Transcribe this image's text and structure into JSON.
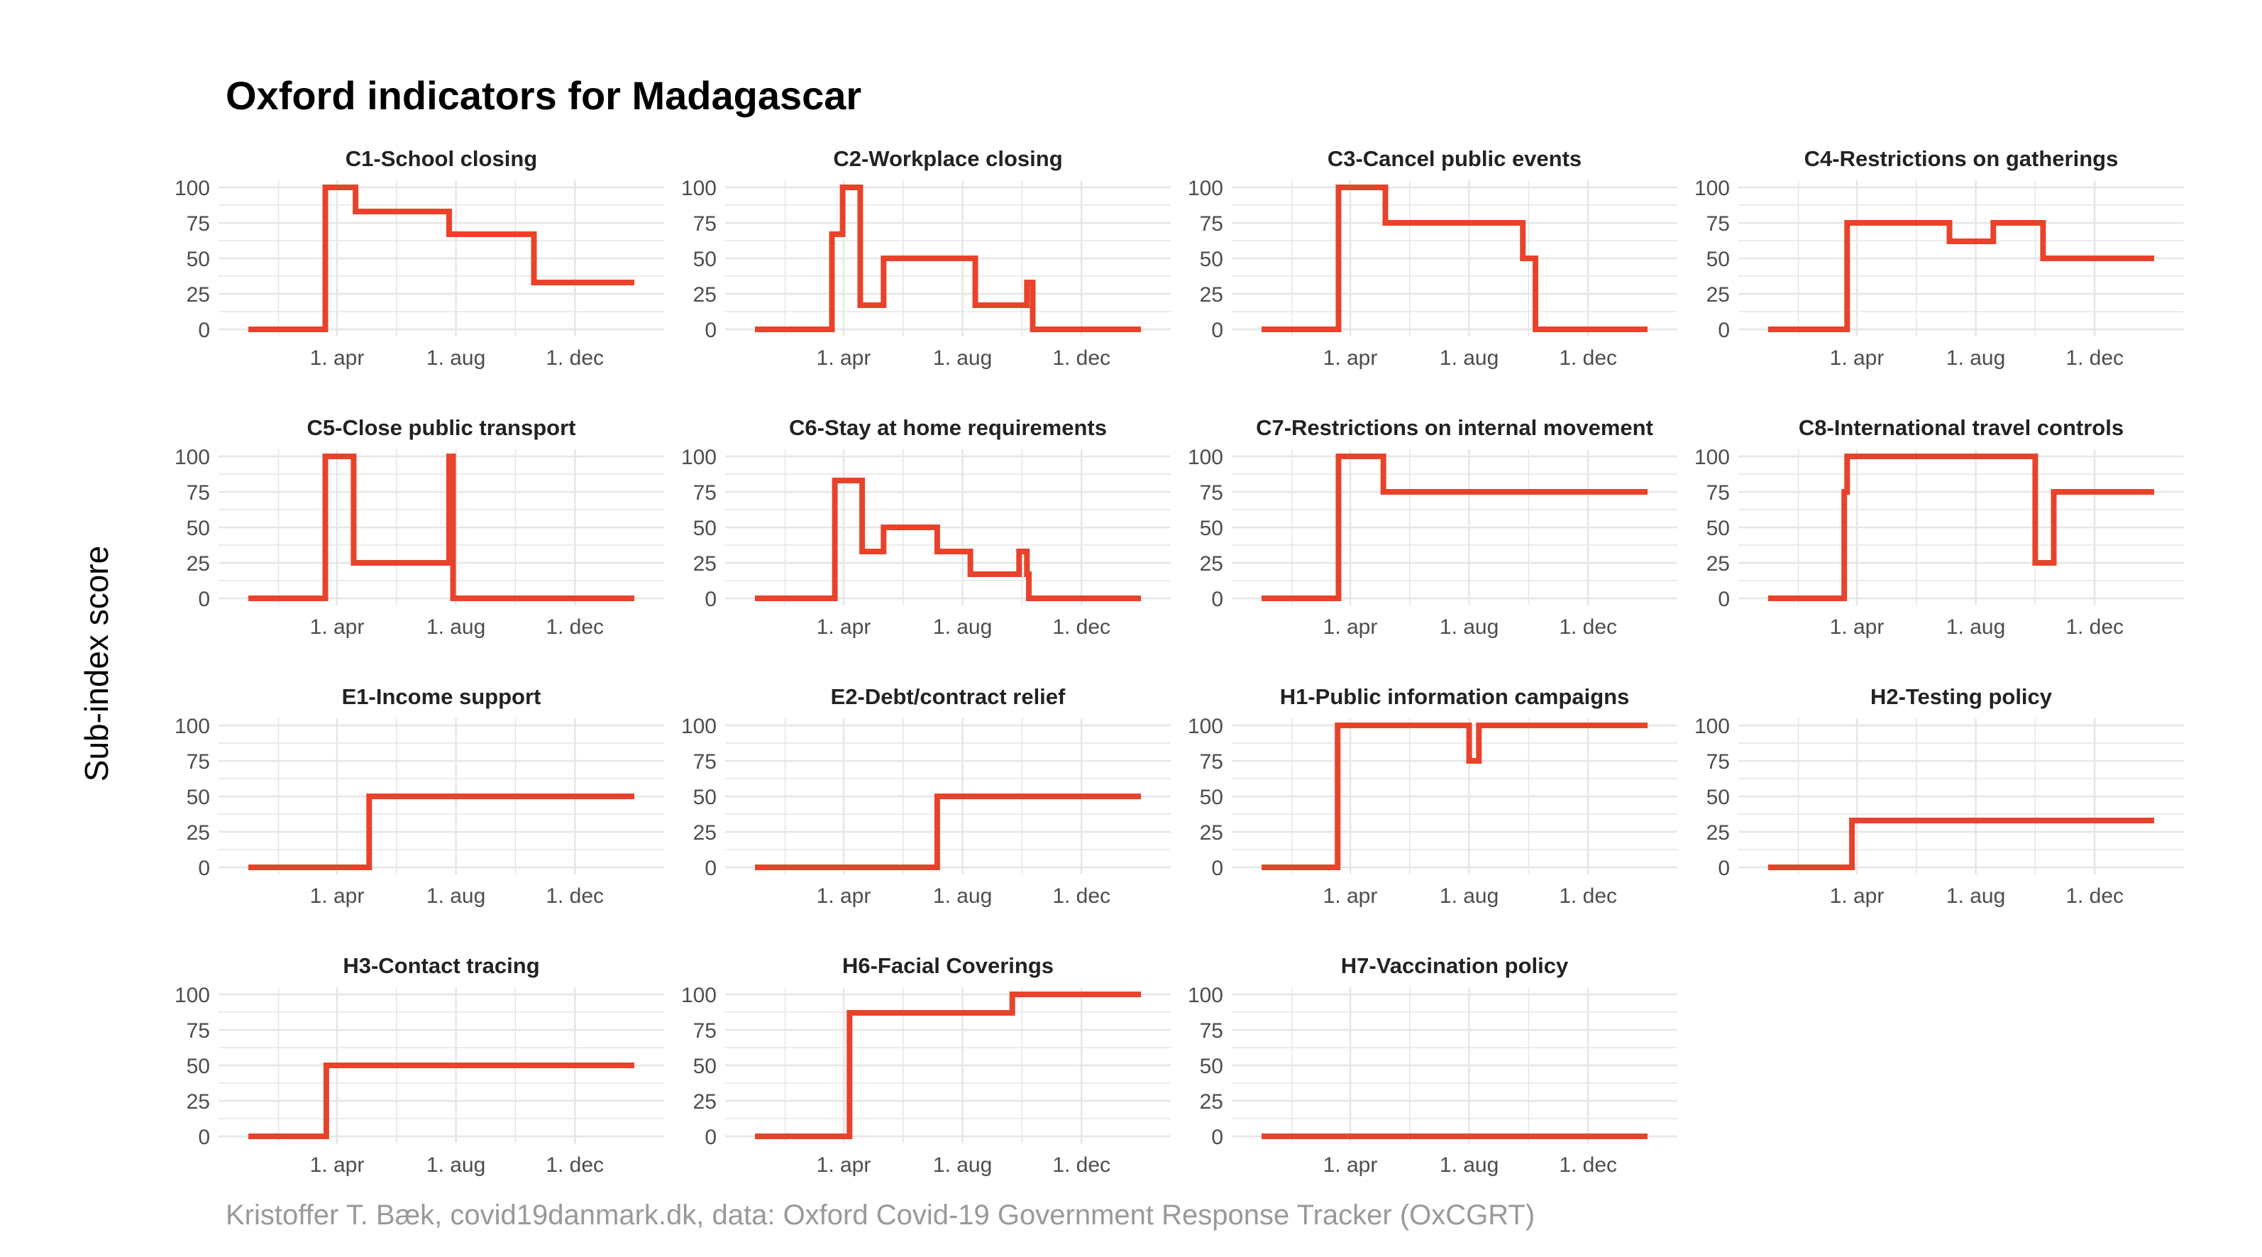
{
  "title": "Oxford indicators for Madagascar",
  "caption": "Kristoffer T. Bæk, covid19danmark.dk, data: Oxford Covid-19 Government Response Tracker (OxCGRT)",
  "ylabel": "Sub-index score",
  "colors": {
    "line": "#E8432A",
    "grid": "#E6E6E6",
    "text": "#222222",
    "tick": "#4D4D4D"
  },
  "chart_data": [
    {
      "type": "line",
      "title": "C1-School closing",
      "x_ticks": [
        "1. apr",
        "1. aug",
        "1. dec"
      ],
      "y_ticks": [
        0,
        25,
        50,
        75,
        100
      ],
      "ylim": [
        0,
        100
      ],
      "x": [
        "2020-01-01",
        "2020-03-20",
        "2020-03-20",
        "2020-04-20",
        "2020-04-20",
        "2020-07-25",
        "2020-07-25",
        "2020-10-20",
        "2020-10-20",
        "2021-01-31"
      ],
      "values": [
        0,
        0,
        100,
        100,
        83,
        83,
        67,
        67,
        33,
        33
      ]
    },
    {
      "type": "line",
      "title": "C2-Workplace closing",
      "x_ticks": [
        "1. apr",
        "1. aug",
        "1. dec"
      ],
      "y_ticks": [
        0,
        25,
        50,
        75,
        100
      ],
      "ylim": [
        0,
        100
      ],
      "x": [
        "2020-01-01",
        "2020-03-20",
        "2020-03-20",
        "2020-03-31",
        "2020-03-31",
        "2020-04-18",
        "2020-04-18",
        "2020-05-12",
        "2020-05-12",
        "2020-08-14",
        "2020-08-14",
        "2020-10-06",
        "2020-10-06",
        "2020-10-12",
        "2020-10-12",
        "2021-01-31"
      ],
      "values": [
        0,
        0,
        67,
        67,
        100,
        100,
        17,
        17,
        50,
        50,
        17,
        17,
        33,
        33,
        0,
        0
      ]
    },
    {
      "type": "line",
      "title": "C3-Cancel public events",
      "x_ticks": [
        "1. apr",
        "1. aug",
        "1. dec"
      ],
      "y_ticks": [
        0,
        25,
        50,
        75,
        100
      ],
      "ylim": [
        0,
        100
      ],
      "x": [
        "2020-01-01",
        "2020-03-20",
        "2020-03-20",
        "2020-05-07",
        "2020-05-07",
        "2020-09-25",
        "2020-09-25",
        "2020-10-08",
        "2020-10-08",
        "2021-01-31"
      ],
      "values": [
        0,
        0,
        100,
        100,
        75,
        75,
        50,
        50,
        0,
        0
      ]
    },
    {
      "type": "line",
      "title": "C4-Restrictions on gatherings",
      "x_ticks": [
        "1. apr",
        "1. aug",
        "1. dec"
      ],
      "y_ticks": [
        0,
        25,
        50,
        75,
        100
      ],
      "ylim": [
        0,
        100
      ],
      "x": [
        "2020-01-01",
        "2020-03-22",
        "2020-03-22",
        "2020-07-05",
        "2020-07-05",
        "2020-08-19",
        "2020-08-19",
        "2020-10-09",
        "2020-10-09",
        "2021-01-31"
      ],
      "values": [
        0,
        0,
        75,
        75,
        62,
        62,
        75,
        75,
        50,
        50
      ]
    },
    {
      "type": "line",
      "title": "C5-Close public transport",
      "x_ticks": [
        "1. apr",
        "1. aug",
        "1. dec"
      ],
      "y_ticks": [
        0,
        25,
        50,
        75,
        100
      ],
      "ylim": [
        0,
        100
      ],
      "x": [
        "2020-01-01",
        "2020-03-20",
        "2020-03-20",
        "2020-04-18",
        "2020-04-18",
        "2020-07-25",
        "2020-07-25",
        "2020-07-29",
        "2020-07-29",
        "2021-01-31"
      ],
      "values": [
        0,
        0,
        100,
        100,
        25,
        25,
        100,
        100,
        0,
        0
      ]
    },
    {
      "type": "line",
      "title": "C6-Stay at home requirements",
      "x_ticks": [
        "1. apr",
        "1. aug",
        "1. dec"
      ],
      "y_ticks": [
        0,
        25,
        50,
        75,
        100
      ],
      "ylim": [
        0,
        100
      ],
      "x": [
        "2020-01-01",
        "2020-03-23",
        "2020-03-23",
        "2020-04-20",
        "2020-04-20",
        "2020-05-12",
        "2020-05-12",
        "2020-07-06",
        "2020-07-06",
        "2020-08-09",
        "2020-08-09",
        "2020-09-28",
        "2020-09-28",
        "2020-10-06",
        "2020-10-06",
        "2020-10-08",
        "2020-10-08",
        "2021-01-31"
      ],
      "values": [
        0,
        0,
        83,
        83,
        33,
        33,
        50,
        50,
        33,
        33,
        17,
        17,
        33,
        33,
        17,
        17,
        0,
        0
      ]
    },
    {
      "type": "line",
      "title": "C7-Restrictions on internal movement",
      "x_ticks": [
        "1. apr",
        "1. aug",
        "1. dec"
      ],
      "y_ticks": [
        0,
        25,
        50,
        75,
        100
      ],
      "ylim": [
        0,
        100
      ],
      "x": [
        "2020-01-01",
        "2020-03-20",
        "2020-03-20",
        "2020-05-05",
        "2020-05-05",
        "2021-01-31"
      ],
      "values": [
        0,
        0,
        100,
        100,
        75,
        75
      ]
    },
    {
      "type": "line",
      "title": "C8-International travel controls",
      "x_ticks": [
        "1. apr",
        "1. aug",
        "1. dec"
      ],
      "y_ticks": [
        0,
        25,
        50,
        75,
        100
      ],
      "ylim": [
        0,
        100
      ],
      "x": [
        "2020-01-01",
        "2020-03-19",
        "2020-03-19",
        "2020-03-22",
        "2020-03-22",
        "2020-10-01",
        "2020-10-01",
        "2020-10-20",
        "2020-10-20",
        "2021-01-31"
      ],
      "values": [
        0,
        0,
        75,
        75,
        100,
        100,
        25,
        25,
        75,
        75
      ]
    },
    {
      "type": "line",
      "title": "E1-Income support",
      "x_ticks": [
        "1. apr",
        "1. aug",
        "1. dec"
      ],
      "y_ticks": [
        0,
        25,
        50,
        75,
        100
      ],
      "ylim": [
        0,
        100
      ],
      "x": [
        "2020-01-01",
        "2020-05-04",
        "2020-05-04",
        "2021-01-31"
      ],
      "values": [
        0,
        0,
        50,
        50
      ]
    },
    {
      "type": "line",
      "title": "E2-Debt/contract relief",
      "x_ticks": [
        "1. apr",
        "1. aug",
        "1. dec"
      ],
      "y_ticks": [
        0,
        25,
        50,
        75,
        100
      ],
      "ylim": [
        0,
        100
      ],
      "x": [
        "2020-01-01",
        "2020-07-06",
        "2020-07-06",
        "2021-01-31"
      ],
      "values": [
        0,
        0,
        50,
        50
      ]
    },
    {
      "type": "line",
      "title": "H1-Public information campaigns",
      "x_ticks": [
        "1. apr",
        "1. aug",
        "1. dec"
      ],
      "y_ticks": [
        0,
        25,
        50,
        75,
        100
      ],
      "ylim": [
        0,
        100
      ],
      "x": [
        "2020-01-01",
        "2020-03-19",
        "2020-03-19",
        "2020-08-01",
        "2020-08-01",
        "2020-08-11",
        "2020-08-11",
        "2021-01-31"
      ],
      "values": [
        0,
        0,
        100,
        100,
        75,
        75,
        100,
        100
      ]
    },
    {
      "type": "line",
      "title": "H2-Testing policy",
      "x_ticks": [
        "1. apr",
        "1. aug",
        "1. dec"
      ],
      "y_ticks": [
        0,
        25,
        50,
        75,
        100
      ],
      "ylim": [
        0,
        100
      ],
      "x": [
        "2020-01-01",
        "2020-03-27",
        "2020-03-27",
        "2021-01-31"
      ],
      "values": [
        0,
        0,
        33,
        33
      ]
    },
    {
      "type": "line",
      "title": "H3-Contact tracing",
      "x_ticks": [
        "1. apr",
        "1. aug",
        "1. dec"
      ],
      "y_ticks": [
        0,
        25,
        50,
        75,
        100
      ],
      "ylim": [
        0,
        100
      ],
      "x": [
        "2020-01-01",
        "2020-03-21",
        "2020-03-21",
        "2021-01-31"
      ],
      "values": [
        0,
        0,
        50,
        50
      ]
    },
    {
      "type": "line",
      "title": "H6-Facial Coverings",
      "x_ticks": [
        "1. apr",
        "1. aug",
        "1. dec"
      ],
      "y_ticks": [
        0,
        25,
        50,
        75,
        100
      ],
      "ylim": [
        0,
        100
      ],
      "x": [
        "2020-01-01",
        "2020-04-07",
        "2020-04-07",
        "2020-09-21",
        "2020-09-21",
        "2021-01-31"
      ],
      "values": [
        0,
        0,
        87,
        87,
        100,
        100
      ]
    },
    {
      "type": "line",
      "title": "H7-Vaccination policy",
      "x_ticks": [
        "1. apr",
        "1. aug",
        "1. dec"
      ],
      "y_ticks": [
        0,
        25,
        50,
        75,
        100
      ],
      "ylim": [
        0,
        100
      ],
      "x": [
        "2020-01-01",
        "2021-01-31"
      ],
      "values": [
        0,
        0
      ]
    }
  ]
}
